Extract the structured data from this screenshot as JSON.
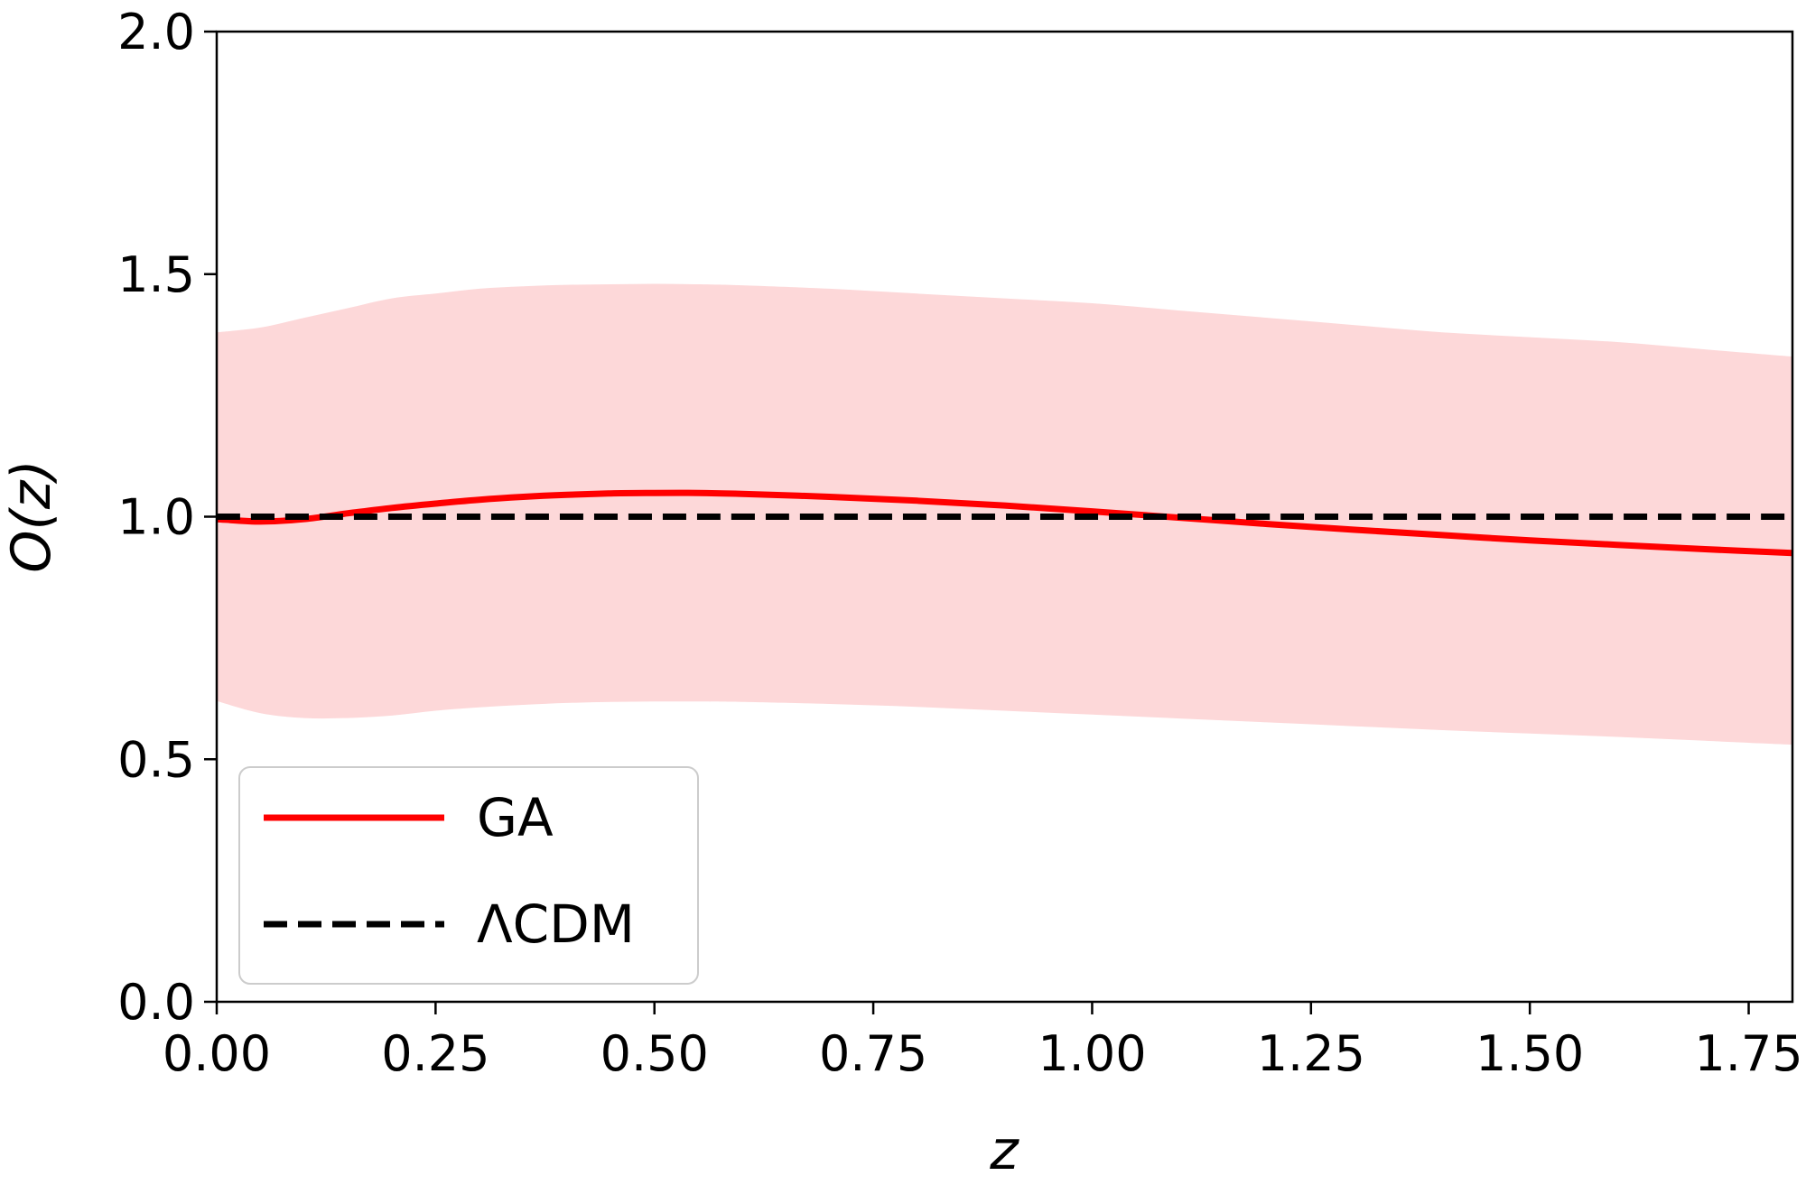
{
  "chart_data": {
    "type": "line",
    "title": "",
    "xlabel": "z",
    "ylabel": "O(z)",
    "xlim": [
      0,
      1.8
    ],
    "ylim": [
      0,
      2.0
    ],
    "xticks": [
      "0.00",
      "0.25",
      "0.50",
      "0.75",
      "1.00",
      "1.25",
      "1.50",
      "1.75"
    ],
    "yticks": [
      "0.0",
      "0.5",
      "1.0",
      "1.5",
      "2.0"
    ],
    "grid": false,
    "legend_position": "lower-left",
    "series": [
      {
        "name": "GA",
        "style": "solid",
        "color": "#ff0000",
        "x": [
          0.0,
          0.05,
          0.1,
          0.15,
          0.2,
          0.25,
          0.3,
          0.35,
          0.4,
          0.45,
          0.5,
          0.55,
          0.6,
          0.7,
          0.8,
          0.9,
          1.0,
          1.1,
          1.2,
          1.3,
          1.4,
          1.5,
          1.6,
          1.7,
          1.8
        ],
        "y": [
          0.995,
          0.99,
          0.995,
          1.007,
          1.018,
          1.027,
          1.035,
          1.041,
          1.045,
          1.048,
          1.049,
          1.049,
          1.047,
          1.041,
          1.033,
          1.023,
          1.011,
          0.998,
          0.985,
          0.973,
          0.962,
          0.951,
          0.942,
          0.933,
          0.925
        ],
        "band": {
          "color": "#fdd8d9",
          "upper": [
            1.38,
            1.39,
            1.41,
            1.43,
            1.45,
            1.46,
            1.47,
            1.475,
            1.478,
            1.479,
            1.48,
            1.479,
            1.477,
            1.47,
            1.46,
            1.45,
            1.44,
            1.425,
            1.41,
            1.395,
            1.38,
            1.37,
            1.36,
            1.345,
            1.33
          ],
          "lower": [
            0.62,
            0.595,
            0.585,
            0.585,
            0.59,
            0.6,
            0.607,
            0.612,
            0.616,
            0.618,
            0.619,
            0.619,
            0.618,
            0.614,
            0.608,
            0.6,
            0.592,
            0.584,
            0.576,
            0.568,
            0.56,
            0.553,
            0.546,
            0.538,
            0.53
          ]
        }
      },
      {
        "name": "ΛCDM",
        "style": "dashed",
        "color": "#000000",
        "x": [
          0.0,
          1.8
        ],
        "y": [
          1.0,
          1.0
        ]
      }
    ]
  }
}
